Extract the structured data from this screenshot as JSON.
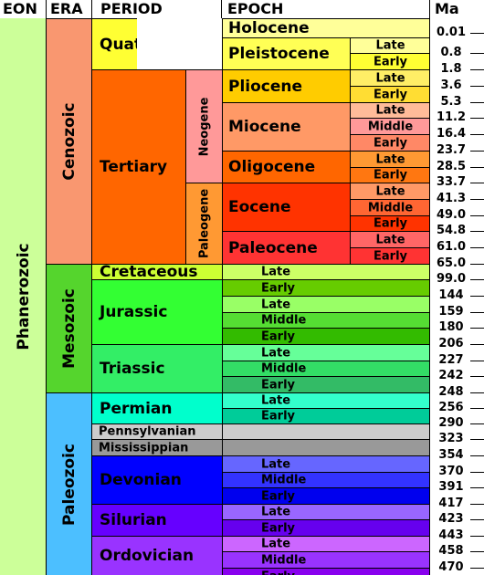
{
  "headers": {
    "eon": "EON",
    "era": "ERA",
    "period": "PERIOD",
    "epoch": "EPOCH",
    "ma": "Ma"
  },
  "eon": {
    "label": "Phanerozoic",
    "color": "#ccff99"
  },
  "eras": [
    {
      "label": "Cenozoic",
      "color": "#f99770"
    },
    {
      "label": "Mesozoic",
      "color": "#55d52d"
    },
    {
      "label": "Paleozoic",
      "color": "#4cbfff"
    }
  ],
  "periods": [
    {
      "label": "Quaternary",
      "color": "#ffff33"
    },
    {
      "label": "Tertiary",
      "color": "#ff6600"
    },
    {
      "label": "Cretaceous",
      "color": "#ccff33"
    },
    {
      "label": "Jurassic",
      "color": "#33ff33"
    },
    {
      "label": "Triassic",
      "color": "#33ee66"
    },
    {
      "label": "Permian",
      "color": "#00ffcc"
    },
    {
      "label": "Pennsylvanian",
      "color": "#cccccc"
    },
    {
      "label": "Mississippian",
      "color": "#999999"
    },
    {
      "label": "Devonian",
      "color": "#0000ff"
    },
    {
      "label": "Silurian",
      "color": "#6600ff"
    },
    {
      "label": "Ordovician",
      "color": "#9933ff"
    }
  ],
  "subperiods": [
    {
      "label": "Neogene",
      "color": "#ff9999"
    },
    {
      "label": "Paleogene",
      "color": "#ff9933"
    }
  ],
  "epochs": [
    {
      "label": "Holocene",
      "color": "#ffff99"
    },
    {
      "label": "Pleistocene",
      "color": "#ffff55"
    },
    {
      "label": "Pliocene",
      "color": "#ffcc00"
    },
    {
      "label": "Miocene",
      "color": "#ff9966"
    },
    {
      "label": "Oligocene",
      "color": "#ff6600"
    },
    {
      "label": "Eocene",
      "color": "#ff3300"
    },
    {
      "label": "Paleocene",
      "color": "#ff3333"
    }
  ],
  "subdivisions": [
    {
      "label": "Late",
      "color": "#ffff99"
    },
    {
      "label": "Early",
      "color": "#ffff33"
    },
    {
      "label": "Late",
      "color": "#ffee66"
    },
    {
      "label": "Early",
      "color": "#ffdd33"
    },
    {
      "label": "Late",
      "color": "#ffbb99"
    },
    {
      "label": "Middle",
      "color": "#ff9999"
    },
    {
      "label": "Early",
      "color": "#ff8866"
    },
    {
      "label": "Late",
      "color": "#ff9933"
    },
    {
      "label": "Early",
      "color": "#ff7711"
    },
    {
      "label": "Late",
      "color": "#ff9966"
    },
    {
      "label": "Middle",
      "color": "#ff6633"
    },
    {
      "label": "Early",
      "color": "#ff3300"
    },
    {
      "label": "Late",
      "color": "#ff6666"
    },
    {
      "label": "Early",
      "color": "#ff3333"
    },
    {
      "label": "Late",
      "color": "#ccff66"
    },
    {
      "label": "Early",
      "color": "#66cc00"
    },
    {
      "label": "Late",
      "color": "#99ff66"
    },
    {
      "label": "Middle",
      "color": "#55dd33"
    },
    {
      "label": "Early",
      "color": "#33bb00"
    },
    {
      "label": "Late",
      "color": "#66ff99"
    },
    {
      "label": "Middle",
      "color": "#33dd66"
    },
    {
      "label": "Early",
      "color": "#33bb66"
    },
    {
      "label": "Late",
      "color": "#33ffcc"
    },
    {
      "label": "Early",
      "color": "#00cc99"
    },
    {
      "label": "Late",
      "color": "#6666ff"
    },
    {
      "label": "Middle",
      "color": "#3333ff"
    },
    {
      "label": "Early",
      "color": "#0000ee"
    },
    {
      "label": "Late",
      "color": "#9966ff"
    },
    {
      "label": "Early",
      "color": "#6600ee"
    },
    {
      "label": "Late",
      "color": "#cc66ff"
    },
    {
      "label": "Middle",
      "color": "#9933ff"
    },
    {
      "label": "Early",
      "color": "#8800ee"
    }
  ],
  "ma_values": [
    "0.01",
    "0.8",
    "1.8",
    "3.6",
    "5.3",
    "11.2",
    "16.4",
    "23.7",
    "28.5",
    "33.7",
    "41.3",
    "49.0",
    "54.8",
    "61.0",
    "65.0",
    "99.0",
    "144",
    "159",
    "180",
    "206",
    "227",
    "242",
    "248",
    "256",
    "290",
    "323",
    "354",
    "370",
    "391",
    "417",
    "423",
    "443",
    "458",
    "470"
  ]
}
